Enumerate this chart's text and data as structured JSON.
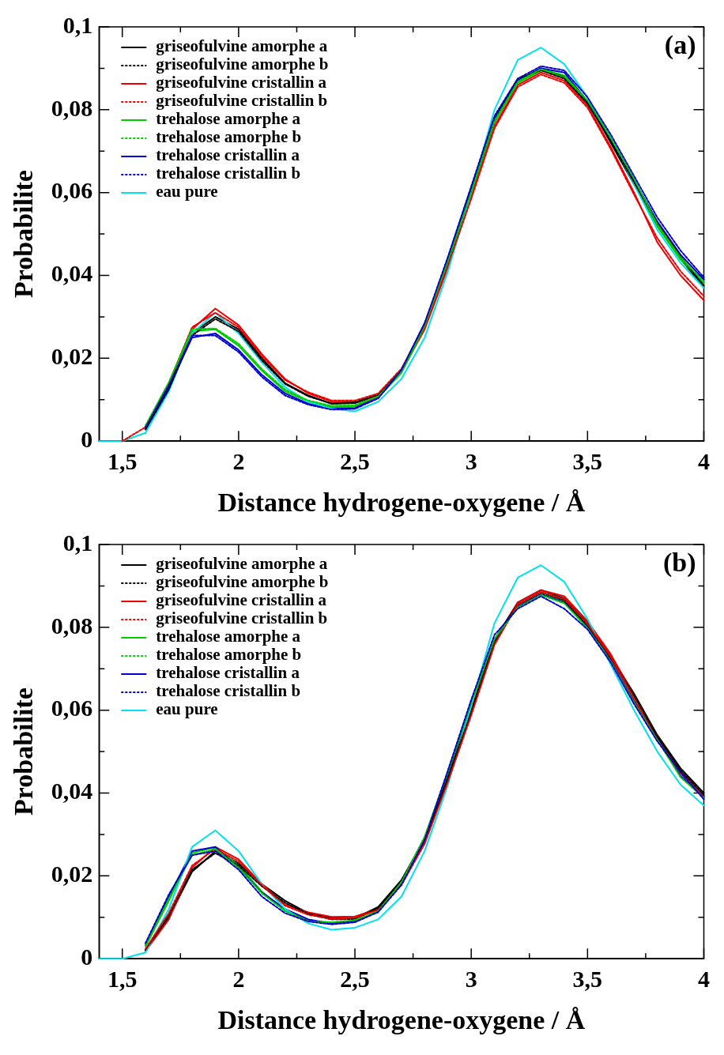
{
  "chart_data": [
    {
      "type": "line",
      "xlabel": "Distance hydrogene-oxygene / Å",
      "ylabel": "Probabilite",
      "annotations": [
        "(a)"
      ],
      "legend": "top left",
      "xlim": [
        1.4,
        4
      ],
      "ylim": [
        0,
        0.1
      ],
      "xticks": [
        {
          "value": 1.5,
          "label": "1,5"
        },
        {
          "value": 1.75,
          "label": null
        },
        {
          "value": 2,
          "label": "2"
        },
        {
          "value": 2.25,
          "label": null
        },
        {
          "value": 2.5,
          "label": "2,5"
        },
        {
          "value": 2.75,
          "label": null
        },
        {
          "value": 3,
          "label": "3"
        },
        {
          "value": 3.25,
          "label": null
        },
        {
          "value": 3.5,
          "label": "3,5"
        },
        {
          "value": 3.75,
          "label": null
        },
        {
          "value": 4,
          "label": "4"
        }
      ],
      "yticks": [
        0,
        {
          "value": 0.01,
          "label": null
        },
        {
          "value": 0.02,
          "label": "0,02"
        },
        {
          "value": 0.03,
          "label": null
        },
        {
          "value": 0.04,
          "label": "0,04"
        },
        {
          "value": 0.05,
          "label": null
        },
        {
          "value": 0.06,
          "label": "0,06"
        },
        {
          "value": 0.07,
          "label": null
        },
        {
          "value": 0.08,
          "label": "0,08"
        },
        {
          "value": 0.09,
          "label": null
        },
        {
          "value": 0.1,
          "label": "0,1"
        }
      ],
      "x": [
        1.4,
        1.5,
        1.6,
        1.7,
        1.8,
        1.9,
        2.0,
        2.1,
        2.2,
        2.3,
        2.4,
        2.5,
        2.6,
        2.7,
        2.8,
        2.9,
        3.0,
        3.1,
        3.2,
        3.3,
        3.4,
        3.5,
        3.6,
        3.7,
        3.8,
        3.9,
        4.0
      ],
      "series": [
        {
          "name": "griseofulvine amorphe a",
          "color": "#000000",
          "line_style": "solid",
          "values": [
            null,
            null,
            0.003,
            0.013,
            0.026,
            0.03,
            0.027,
            0.02,
            0.014,
            0.011,
            0.009,
            0.0092,
            0.011,
            0.017,
            0.028,
            0.043,
            0.06,
            0.077,
            0.087,
            0.09,
            0.088,
            0.082,
            0.072,
            0.062,
            0.052,
            0.044,
            0.037
          ]
        },
        {
          "name": "griseofulvine amorphe b",
          "color": "#000000",
          "line_style": "dotted",
          "values": [
            null,
            null,
            0.0028,
            0.0125,
            0.0255,
            0.0295,
            0.0265,
            0.0195,
            0.0138,
            0.0108,
            0.0091,
            0.0094,
            0.0112,
            0.0172,
            0.0285,
            0.0435,
            0.0605,
            0.0775,
            0.0875,
            0.0895,
            0.0875,
            0.0815,
            0.0725,
            0.0625,
            0.0525,
            0.0445,
            0.0375
          ]
        },
        {
          "name": "griseofulvine cristallin a",
          "color": "#ee0000",
          "line_style": "solid",
          "values": [
            null,
            null,
            0.0032,
            0.0135,
            0.027,
            0.032,
            0.028,
            0.021,
            0.015,
            0.0115,
            0.0095,
            0.0095,
            0.011,
            0.0168,
            0.027,
            0.042,
            0.059,
            0.076,
            0.086,
            0.089,
            0.087,
            0.081,
            0.071,
            0.06,
            0.048,
            0.04,
            0.034
          ]
        },
        {
          "name": "griseofulvine cristallin b",
          "color": "#ee0000",
          "line_style": "dotted",
          "values": [
            null,
            0,
            0.0034,
            0.014,
            0.0275,
            0.031,
            0.0275,
            0.0205,
            0.0147,
            0.0118,
            0.0098,
            0.0098,
            0.0115,
            0.0175,
            0.0275,
            0.0425,
            0.0585,
            0.0755,
            0.0855,
            0.0885,
            0.0865,
            0.0805,
            0.0705,
            0.0595,
            0.049,
            0.041,
            0.035
          ]
        },
        {
          "name": "trehalose amorphe a",
          "color": "#00cc00",
          "line_style": "solid",
          "values": [
            null,
            null,
            0.0036,
            0.0138,
            0.0265,
            0.027,
            0.023,
            0.017,
            0.012,
            0.0095,
            0.0082,
            0.0084,
            0.0105,
            0.0165,
            0.0275,
            0.043,
            0.06,
            0.077,
            0.0865,
            0.0895,
            0.0878,
            0.0818,
            0.0728,
            0.0628,
            0.0518,
            0.0438,
            0.038
          ]
        },
        {
          "name": "trehalose amorphe b",
          "color": "#00cc00",
          "line_style": "dotted",
          "values": [
            null,
            null,
            0.0038,
            0.0142,
            0.027,
            0.0272,
            0.0235,
            0.0174,
            0.0124,
            0.0098,
            0.0085,
            0.0087,
            0.0108,
            0.0168,
            0.028,
            0.0435,
            0.0602,
            0.0773,
            0.0868,
            0.0898,
            0.0883,
            0.0822,
            0.0733,
            0.0633,
            0.0523,
            0.0443,
            0.0385
          ]
        },
        {
          "name": "trehalose cristallin a",
          "color": "#0000cc",
          "line_style": "solid",
          "values": [
            null,
            null,
            0.003,
            0.013,
            0.025,
            0.026,
            0.022,
            0.016,
            0.0115,
            0.009,
            0.0078,
            0.008,
            0.0105,
            0.017,
            0.028,
            0.044,
            0.061,
            0.078,
            0.087,
            0.09,
            0.089,
            0.082,
            0.073,
            0.063,
            0.053,
            0.045,
            0.039
          ]
        },
        {
          "name": "trehalose cristallin b",
          "color": "#0000cc",
          "line_style": "dotted",
          "values": [
            null,
            null,
            0.0033,
            0.0135,
            0.0255,
            0.0255,
            0.0215,
            0.0155,
            0.011,
            0.0088,
            0.0076,
            0.0078,
            0.0103,
            0.0172,
            0.0285,
            0.0445,
            0.0615,
            0.0785,
            0.0875,
            0.0905,
            0.0895,
            0.083,
            0.074,
            0.064,
            0.054,
            0.046,
            0.0395
          ]
        },
        {
          "name": "eau pure",
          "color": "#00e0ee",
          "line_style": "solid",
          "values": [
            0,
            0,
            0.002,
            0.012,
            0.026,
            0.031,
            0.026,
            0.019,
            0.013,
            0.0095,
            0.0078,
            0.0072,
            0.0095,
            0.015,
            0.025,
            0.041,
            0.06,
            0.08,
            0.092,
            0.095,
            0.091,
            0.083,
            0.073,
            0.062,
            0.051,
            0.043,
            0.037
          ]
        }
      ]
    },
    {
      "type": "line",
      "xlabel": "Distance hydrogene-oxygene / Å",
      "ylabel": "Probabilite",
      "annotations": [
        "(b)"
      ],
      "legend": "top left",
      "xlim": [
        1.4,
        4
      ],
      "ylim": [
        0,
        0.1
      ],
      "xticks": [
        {
          "value": 1.5,
          "label": "1,5"
        },
        {
          "value": 1.75,
          "label": null
        },
        {
          "value": 2,
          "label": "2"
        },
        {
          "value": 2.25,
          "label": null
        },
        {
          "value": 2.5,
          "label": "2,5"
        },
        {
          "value": 2.75,
          "label": null
        },
        {
          "value": 3,
          "label": "3"
        },
        {
          "value": 3.25,
          "label": null
        },
        {
          "value": 3.5,
          "label": "3,5"
        },
        {
          "value": 3.75,
          "label": null
        },
        {
          "value": 4,
          "label": "4"
        }
      ],
      "yticks": [
        0,
        {
          "value": 0.01,
          "label": null
        },
        {
          "value": 0.02,
          "label": "0,02"
        },
        {
          "value": 0.03,
          "label": null
        },
        {
          "value": 0.04,
          "label": "0,04"
        },
        {
          "value": 0.05,
          "label": null
        },
        {
          "value": 0.06,
          "label": "0,06"
        },
        {
          "value": 0.07,
          "label": null
        },
        {
          "value": 0.08,
          "label": "0,08"
        },
        {
          "value": 0.09,
          "label": null
        },
        {
          "value": 0.1,
          "label": "0,1"
        }
      ],
      "x": [
        1.4,
        1.5,
        1.6,
        1.7,
        1.8,
        1.9,
        2.0,
        2.1,
        2.2,
        2.3,
        2.4,
        2.5,
        2.6,
        2.7,
        2.8,
        2.9,
        3.0,
        3.1,
        3.2,
        3.3,
        3.4,
        3.5,
        3.6,
        3.7,
        3.8,
        3.9,
        4.0
      ],
      "series": [
        {
          "name": "griseofulvine amorphe a",
          "color": "#000000",
          "line_style": "solid",
          "values": [
            null,
            null,
            0.002,
            0.01,
            0.021,
            0.026,
            0.023,
            0.018,
            0.014,
            0.011,
            0.0098,
            0.0098,
            0.0125,
            0.019,
            0.029,
            0.044,
            0.06,
            0.077,
            0.086,
            0.089,
            0.087,
            0.081,
            0.073,
            0.064,
            0.054,
            0.046,
            0.04
          ]
        },
        {
          "name": "griseofulvine amorphe b",
          "color": "#000000",
          "line_style": "dotted",
          "values": [
            null,
            null,
            0.0022,
            0.0105,
            0.0215,
            0.0255,
            0.0225,
            0.0175,
            0.0135,
            0.0108,
            0.0095,
            0.0096,
            0.0122,
            0.0185,
            0.0285,
            0.0435,
            0.0595,
            0.0765,
            0.0855,
            0.0885,
            0.0865,
            0.0805,
            0.0725,
            0.0635,
            0.0535,
            0.0455,
            0.0395
          ]
        },
        {
          "name": "griseofulvine cristallin a",
          "color": "#ee0000",
          "line_style": "solid",
          "values": [
            null,
            null,
            0.0018,
            0.0095,
            0.022,
            0.027,
            0.024,
            0.018,
            0.013,
            0.0112,
            0.0101,
            0.0102,
            0.012,
            0.018,
            0.028,
            0.043,
            0.059,
            0.076,
            0.086,
            0.089,
            0.0875,
            0.0815,
            0.0735,
            0.0635,
            0.0535,
            0.0452,
            0.0392
          ]
        },
        {
          "name": "griseofulvine cristallin b",
          "color": "#ee0000",
          "line_style": "dotted",
          "values": [
            null,
            null,
            0.0024,
            0.011,
            0.0225,
            0.0265,
            0.0235,
            0.0178,
            0.0128,
            0.0106,
            0.0096,
            0.0099,
            0.0118,
            0.0178,
            0.0278,
            0.0428,
            0.0588,
            0.0758,
            0.0855,
            0.0885,
            0.0868,
            0.0808,
            0.0728,
            0.0628,
            0.0528,
            0.0448,
            0.0388
          ]
        },
        {
          "name": "trehalose amorphe a",
          "color": "#00cc00",
          "line_style": "solid",
          "values": [
            null,
            null,
            0.003,
            0.014,
            0.0255,
            0.027,
            0.0225,
            0.0162,
            0.0118,
            0.0092,
            0.0087,
            0.0092,
            0.0112,
            0.0182,
            0.0292,
            0.0448,
            0.0615,
            0.0768,
            0.0852,
            0.0882,
            0.0862,
            0.0802,
            0.0722,
            0.0622,
            0.0532,
            0.0442,
            0.0392
          ]
        },
        {
          "name": "trehalose amorphe b",
          "color": "#00cc00",
          "line_style": "dotted",
          "values": [
            null,
            null,
            0.0032,
            0.0145,
            0.025,
            0.0265,
            0.022,
            0.0158,
            0.0115,
            0.009,
            0.0088,
            0.0093,
            0.0115,
            0.0185,
            0.0295,
            0.0452,
            0.0618,
            0.0772,
            0.0848,
            0.0878,
            0.0858,
            0.0798,
            0.0718,
            0.0618,
            0.0528,
            0.0438,
            0.0388
          ]
        },
        {
          "name": "trehalose cristallin a",
          "color": "#0000cc",
          "line_style": "solid",
          "values": [
            null,
            null,
            0.0035,
            0.015,
            0.026,
            0.027,
            0.022,
            0.016,
            0.012,
            0.0095,
            0.0085,
            0.009,
            0.0115,
            0.018,
            0.029,
            0.045,
            0.062,
            0.077,
            0.085,
            0.088,
            0.086,
            0.08,
            0.072,
            0.062,
            0.053,
            0.044,
            0.039
          ]
        },
        {
          "name": "trehalose cristallin b",
          "color": "#0000cc",
          "line_style": "dotted",
          "values": [
            null,
            null,
            0.0038,
            0.0155,
            0.025,
            0.026,
            0.0215,
            0.015,
            0.011,
            0.009,
            0.0083,
            0.0088,
            0.0113,
            0.0178,
            0.0288,
            0.0455,
            0.0625,
            0.0782,
            0.0845,
            0.0875,
            0.0845,
            0.0795,
            0.0715,
            0.0615,
            0.0525,
            0.045,
            0.0385
          ]
        },
        {
          "name": "eau pure",
          "color": "#00e0ee",
          "line_style": "solid",
          "values": [
            0,
            0,
            0.0015,
            0.012,
            0.027,
            0.031,
            0.026,
            0.018,
            0.012,
            0.0085,
            0.007,
            0.0075,
            0.0095,
            0.015,
            0.026,
            0.042,
            0.061,
            0.081,
            0.092,
            0.095,
            0.091,
            0.082,
            0.071,
            0.06,
            0.05,
            0.042,
            0.037
          ]
        }
      ]
    }
  ]
}
